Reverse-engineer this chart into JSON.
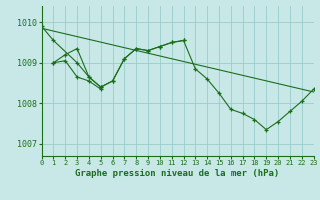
{
  "title": "Graphe pression niveau de la mer (hPa)",
  "background_color": "#c8e8e8",
  "grid_color": "#99cccc",
  "line_color": "#1a6e1a",
  "xlim": [
    0,
    23
  ],
  "ylim": [
    1006.7,
    1010.4
  ],
  "yticks": [
    1007,
    1008,
    1009,
    1010
  ],
  "xticks": [
    0,
    1,
    2,
    3,
    4,
    5,
    6,
    7,
    8,
    9,
    10,
    11,
    12,
    13,
    14,
    15,
    16,
    17,
    18,
    19,
    20,
    21,
    22,
    23
  ],
  "line1_x": [
    0,
    23
  ],
  "line1_y": [
    1009.85,
    1008.28
  ],
  "line2_x": [
    0,
    1,
    3,
    4,
    5,
    6,
    7,
    8,
    9,
    10,
    11,
    12,
    13,
    14,
    15,
    16,
    17,
    18,
    19,
    20,
    21,
    22,
    23
  ],
  "line2_y": [
    1009.9,
    1009.55,
    1009.0,
    1008.65,
    1008.4,
    1008.55,
    1009.1,
    1009.35,
    1009.3,
    1009.4,
    1009.5,
    1009.55,
    1008.85,
    1008.6,
    1008.25,
    1007.85,
    1007.75,
    1007.6,
    1007.35,
    1007.55,
    1007.8,
    1008.05,
    1008.35
  ],
  "line3_x": [
    1,
    2,
    3,
    4,
    5,
    6,
    7,
    8,
    9,
    10,
    11,
    12
  ],
  "line3_y": [
    1009.0,
    1009.2,
    1009.35,
    1008.65,
    1008.4,
    1008.55,
    1009.1,
    1009.35,
    1009.3,
    1009.4,
    1009.5,
    1009.55
  ],
  "line4_x": [
    1,
    2,
    3,
    4,
    5
  ],
  "line4_y": [
    1009.0,
    1009.05,
    1008.65,
    1008.55,
    1008.35
  ]
}
